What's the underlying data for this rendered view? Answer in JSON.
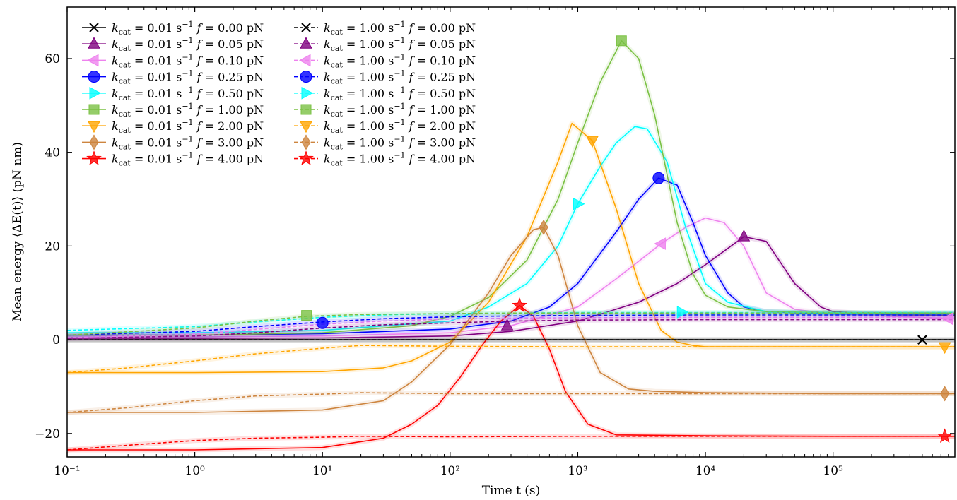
{
  "chart_data": {
    "type": "line",
    "title": "",
    "xlabel": "Time t (s)",
    "ylabel": "Mean energy ⟨ΔE(t)⟩ (pN nm)",
    "xscale": "log",
    "xlim": [
      0.1,
      900000
    ],
    "ylim": [
      -25,
      71
    ],
    "x_ticks": [
      0.1,
      1,
      10,
      100,
      1000,
      10000,
      100000
    ],
    "x_tick_labels": [
      "10⁻¹",
      "10⁰",
      "10¹",
      "10²",
      "10³",
      "10⁴",
      "10⁵"
    ],
    "y_ticks": [
      -20,
      0,
      20,
      40,
      60
    ],
    "y_tick_labels": [
      "−20",
      "0",
      "20",
      "40",
      "60"
    ],
    "grid": false,
    "legend_position": "top-left",
    "legend_columns": 2,
    "series": [
      {
        "name": "k_cat = 0.01 s⁻¹  f = 0.00 pN",
        "kcat_label": "0.01",
        "f_label": "0.00",
        "color": "#000000",
        "linestyle": "solid",
        "marker": "x",
        "x": [
          0.1,
          1,
          10,
          100,
          1000,
          10000,
          100000,
          900000
        ],
        "y": [
          0,
          0,
          0,
          0,
          0,
          0,
          0,
          0
        ],
        "marker_x": 500000,
        "marker_y": 0
      },
      {
        "name": "k_cat = 0.01 s⁻¹  f = 0.05 pN",
        "kcat_label": "0.01",
        "f_label": "0.05",
        "color": "#800080",
        "linestyle": "solid",
        "marker": "triangle-up",
        "x": [
          0.1,
          1,
          10,
          100,
          300,
          1000,
          3000,
          6000,
          10000,
          15000,
          20000,
          30000,
          50000,
          80000,
          100000,
          300000,
          900000
        ],
        "y": [
          0.3,
          0.3,
          0.4,
          0.8,
          1.8,
          4,
          8,
          12,
          16,
          19.5,
          22,
          21,
          12,
          7,
          6,
          5.3,
          5.2
        ],
        "marker_x": 20000,
        "marker_y": 22
      },
      {
        "name": "k_cat = 0.01 s⁻¹  f = 0.10 pN",
        "kcat_label": "0.01",
        "f_label": "0.10",
        "color": "#ee82ee",
        "linestyle": "solid",
        "marker": "triangle-left",
        "x": [
          0.1,
          1,
          10,
          100,
          300,
          1000,
          2000,
          4500,
          7000,
          10000,
          14000,
          20000,
          30000,
          50000,
          100000,
          900000
        ],
        "y": [
          0.5,
          0.6,
          0.8,
          1.5,
          3,
          7,
          13,
          20.5,
          24,
          26,
          25,
          20,
          10,
          6.5,
          5.5,
          4.5
        ],
        "marker_x": 4500,
        "marker_y": 20.5
      },
      {
        "name": "k_cat = 0.01 s⁻¹  f = 0.25 pN",
        "kcat_label": "0.01",
        "f_label": "0.25",
        "color": "#0000ff",
        "linestyle": "solid",
        "marker": "circle",
        "x": [
          0.1,
          1,
          10,
          100,
          300,
          600,
          1000,
          2000,
          3000,
          4300,
          6000,
          8000,
          10000,
          15000,
          20000,
          30000,
          100000,
          900000
        ],
        "y": [
          1,
          1,
          1.3,
          2.3,
          4,
          7,
          12,
          23,
          30,
          34.5,
          33,
          25,
          18,
          10,
          7,
          6,
          5.5,
          5.5
        ],
        "marker_x": 4300,
        "marker_y": 34.5
      },
      {
        "name": "k_cat = 0.01 s⁻¹  f = 0.50 pN",
        "kcat_label": "0.01",
        "f_label": "0.50",
        "color": "#00ffff",
        "linestyle": "solid",
        "marker": "triangle-right",
        "x": [
          0.1,
          1,
          10,
          100,
          200,
          400,
          700,
          1000,
          1500,
          2000,
          2800,
          3500,
          5000,
          7000,
          10000,
          15000,
          30000,
          100000,
          900000
        ],
        "y": [
          1.5,
          1.5,
          2,
          4,
          7,
          12,
          20,
          29,
          37,
          42,
          45.5,
          45,
          38,
          24,
          12,
          8,
          6,
          5.7,
          5.6
        ],
        "marker_x": 1000,
        "marker_y": 29
      },
      {
        "name": "k_cat = 0.01 s⁻¹  f = 1.00 pN",
        "kcat_label": "0.01",
        "f_label": "1.00",
        "color": "#7ac143",
        "linestyle": "solid",
        "marker": "square",
        "x": [
          0.1,
          1,
          10,
          50,
          100,
          200,
          400,
          700,
          1000,
          1500,
          2200,
          3000,
          4000,
          6000,
          8000,
          10000,
          15000,
          30000,
          100000,
          900000
        ],
        "y": [
          1,
          1,
          1.5,
          3,
          5,
          9,
          17,
          30,
          42,
          55,
          63.8,
          60,
          48,
          25,
          14,
          9.5,
          7,
          6,
          5.8,
          5.7
        ],
        "marker_x": 2200,
        "marker_y": 63.8
      },
      {
        "name": "k_cat = 0.01 s⁻¹  f = 2.00 pN",
        "kcat_label": "0.01",
        "f_label": "2.00",
        "color": "#ffa500",
        "linestyle": "solid",
        "marker": "triangle-down",
        "x": [
          0.1,
          1,
          10,
          30,
          50,
          100,
          200,
          400,
          700,
          900,
          1300,
          2000,
          3000,
          4500,
          6000,
          8000,
          10000,
          100000,
          900000
        ],
        "y": [
          -7,
          -7,
          -6.8,
          -6,
          -4.5,
          -0.5,
          8,
          22,
          38,
          46.2,
          42.5,
          28,
          12,
          2,
          -0.5,
          -1.2,
          -1.5,
          -1.5,
          -1.5
        ],
        "marker_x": 1300,
        "marker_y": 42.5
      },
      {
        "name": "k_cat = 0.01 s⁻¹  f = 3.00 pN",
        "kcat_label": "0.01",
        "f_label": "3.00",
        "color": "#cd853f",
        "linestyle": "solid",
        "marker": "diamond",
        "x": [
          0.1,
          1,
          10,
          30,
          50,
          100,
          200,
          300,
          450,
          540,
          700,
          1000,
          1500,
          2500,
          4000,
          10000,
          100000,
          900000
        ],
        "y": [
          -15.5,
          -15.5,
          -15,
          -13,
          -9,
          -1,
          10,
          18,
          23.5,
          24,
          18,
          3,
          -7,
          -10.5,
          -11,
          -11.3,
          -11.5,
          -11.5
        ],
        "marker_x": 540,
        "marker_y": 24
      },
      {
        "name": "k_cat = 0.01 s⁻¹  f = 4.00 pN",
        "kcat_label": "0.01",
        "f_label": "4.00",
        "color": "#ff0000",
        "linestyle": "solid",
        "marker": "star",
        "x": [
          0.1,
          1,
          10,
          30,
          50,
          80,
          120,
          180,
          250,
          350,
          450,
          600,
          800,
          1200,
          2000,
          10000,
          100000,
          900000
        ],
        "y": [
          -23.5,
          -23.5,
          -23,
          -21,
          -18,
          -14,
          -8,
          -1,
          4,
          7.3,
          5,
          -2,
          -11,
          -18,
          -20.3,
          -20.5,
          -20.6,
          -20.6
        ],
        "marker_x": 350,
        "marker_y": 7.3
      },
      {
        "name": "k_cat = 1.00 s⁻¹  f = 0.00 pN",
        "kcat_label": "1.00",
        "f_label": "0.00",
        "color": "#000000",
        "linestyle": "dashed",
        "marker": "x",
        "x": [
          0.1,
          1,
          10,
          100,
          1000,
          10000,
          100000,
          900000
        ],
        "y": [
          0,
          0,
          0,
          0,
          0,
          0,
          0,
          0
        ],
        "marker_x": 500000,
        "marker_y": 0
      },
      {
        "name": "k_cat = 1.00 s⁻¹  f = 0.05 pN",
        "kcat_label": "1.00",
        "f_label": "0.05",
        "color": "#800080",
        "linestyle": "dashed",
        "marker": "triangle-up",
        "x": [
          0.1,
          1,
          3,
          10,
          30,
          100,
          300,
          1000,
          10000,
          100000,
          900000
        ],
        "y": [
          0.3,
          0.8,
          1.5,
          2.5,
          3.2,
          3.6,
          4,
          4.2,
          4.3,
          4.3,
          4.3
        ],
        "marker_x": 280,
        "marker_y": 3
      },
      {
        "name": "k_cat = 1.00 s⁻¹  f = 0.10 pN",
        "kcat_label": "1.00",
        "f_label": "0.10",
        "color": "#ee82ee",
        "linestyle": "dashed",
        "marker": "triangle-left",
        "x": [
          0.1,
          1,
          3,
          10,
          30,
          100,
          300,
          1000,
          10000,
          100000,
          900000
        ],
        "y": [
          0.5,
          1.2,
          2.2,
          3.3,
          4,
          4.4,
          4.6,
          4.7,
          4.8,
          4.8,
          4.8
        ],
        "marker_x": 800000,
        "marker_y": 4.5
      },
      {
        "name": "k_cat = 1.00 s⁻¹  f = 0.25 pN",
        "kcat_label": "1.00",
        "f_label": "0.25",
        "color": "#0000ff",
        "linestyle": "dashed",
        "marker": "circle",
        "x": [
          0.1,
          1,
          3,
          10,
          30,
          100,
          300,
          1000,
          10000,
          100000,
          900000
        ],
        "y": [
          1,
          1.8,
          2.8,
          3.8,
          4.5,
          4.9,
          5.1,
          5.2,
          5.3,
          5.3,
          5.3
        ],
        "marker_x": 10,
        "marker_y": 3.6
      },
      {
        "name": "k_cat = 1.00 s⁻¹  f = 0.50 pN",
        "kcat_label": "1.00",
        "f_label": "0.50",
        "color": "#00ffff",
        "linestyle": "dashed",
        "marker": "triangle-right",
        "x": [
          0.1,
          1,
          3,
          10,
          30,
          100,
          300,
          1000,
          10000,
          100000,
          900000
        ],
        "y": [
          2,
          2.8,
          3.8,
          4.8,
          5.3,
          5.6,
          5.7,
          5.8,
          5.8,
          5.8,
          5.8
        ],
        "marker_x": 6500,
        "marker_y": 5.9
      },
      {
        "name": "k_cat = 1.00 s⁻¹  f = 1.00 pN",
        "kcat_label": "1.00",
        "f_label": "1.00",
        "color": "#7ac143",
        "linestyle": "dashed",
        "marker": "square",
        "x": [
          0.1,
          1,
          3,
          7.5,
          20,
          100,
          300,
          1000,
          10000,
          100000,
          900000
        ],
        "y": [
          1,
          2.5,
          4,
          5,
          5.4,
          5.6,
          5.7,
          5.7,
          5.7,
          5.7,
          5.7
        ],
        "marker_x": 7.5,
        "marker_y": 5.2
      },
      {
        "name": "k_cat = 1.00 s⁻¹  f = 2.00 pN",
        "kcat_label": "1.00",
        "f_label": "2.00",
        "color": "#ffa500",
        "linestyle": "dashed",
        "marker": "triangle-down",
        "x": [
          0.1,
          0.3,
          1,
          3,
          10,
          20,
          100,
          1000,
          10000,
          100000,
          900000
        ],
        "y": [
          -7,
          -6,
          -4.5,
          -3,
          -1.8,
          -1.2,
          -1.4,
          -1.5,
          -1.5,
          -1.5,
          -1.5
        ],
        "marker_x": 750000,
        "marker_y": -1.5
      },
      {
        "name": "k_cat = 1.00 s⁻¹  f = 3.00 pN",
        "kcat_label": "1.00",
        "f_label": "3.00",
        "color": "#cd853f",
        "linestyle": "dashed",
        "marker": "diamond",
        "x": [
          0.1,
          0.3,
          1,
          3,
          10,
          20,
          100,
          1000,
          10000,
          100000,
          900000
        ],
        "y": [
          -15.5,
          -14.5,
          -13,
          -12,
          -11.6,
          -11.3,
          -11.5,
          -11.5,
          -11.5,
          -11.5,
          -11.5
        ],
        "marker_x": 750000,
        "marker_y": -11.5
      },
      {
        "name": "k_cat = 1.00 s⁻¹  f = 4.00 pN",
        "kcat_label": "1.00",
        "f_label": "4.00",
        "color": "#ff0000",
        "linestyle": "dashed",
        "marker": "star",
        "x": [
          0.1,
          0.3,
          1,
          3,
          10,
          20,
          100,
          1000,
          10000,
          100000,
          900000
        ],
        "y": [
          -23.5,
          -22.5,
          -21.5,
          -21,
          -20.8,
          -20.6,
          -20.7,
          -20.6,
          -20.6,
          -20.6,
          -20.6
        ],
        "marker_x": 750000,
        "marker_y": -20.6
      }
    ]
  }
}
